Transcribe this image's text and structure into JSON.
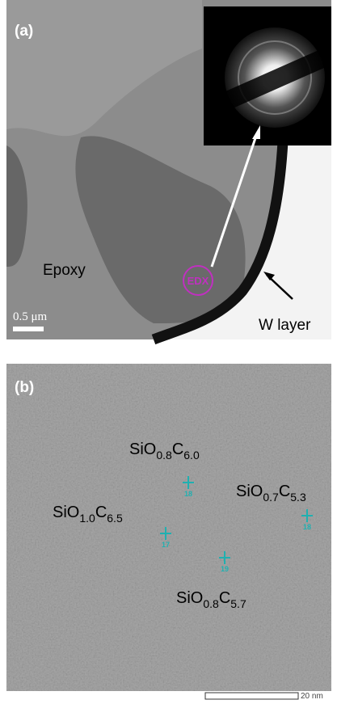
{
  "panel_a": {
    "label": "(a)",
    "epoxy": "Epoxy",
    "scale_bar": "0.5 μm",
    "edx": "EDX",
    "w_layer": "W layer"
  },
  "panel_b": {
    "label": "(b)",
    "points": [
      {
        "formula": [
          "SiO",
          "0.8",
          "C",
          "6.0"
        ],
        "marker": "18"
      },
      {
        "formula": [
          "SiO",
          "0.7",
          "C",
          "5.3"
        ],
        "marker": "18"
      },
      {
        "formula": [
          "SiO",
          "1.0",
          "C",
          "6.5"
        ],
        "marker": "17"
      },
      {
        "formula": [
          "SiO",
          "0.8",
          "C",
          "5.7"
        ],
        "marker": "19"
      }
    ],
    "scale_bar": "20 nm"
  }
}
